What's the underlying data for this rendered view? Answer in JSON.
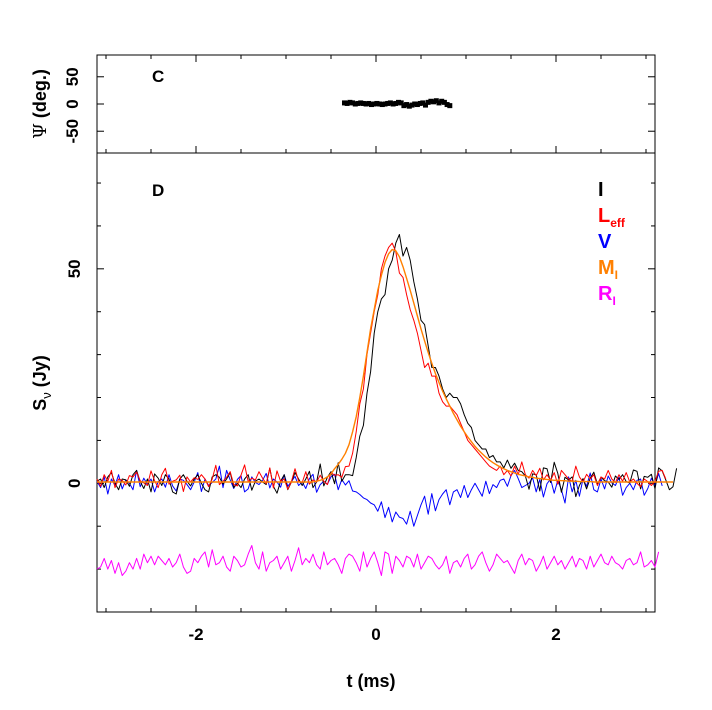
{
  "chart_data": [
    {
      "panel": "C",
      "type": "scatter",
      "title": "",
      "xlabel": "",
      "ylabel_symbol": "Ψ",
      "ylabel_rest": " (deg.)",
      "xlim": [
        -3.1,
        3.1
      ],
      "ylim": [
        -90,
        90
      ],
      "yticks": [
        -50,
        0,
        50
      ],
      "ytick_labels": [
        "-50",
        "0",
        "50"
      ],
      "grid": false,
      "color": "#000000",
      "x": [
        -0.35,
        -0.32,
        -0.29,
        -0.26,
        -0.23,
        -0.2,
        -0.17,
        -0.14,
        -0.11,
        -0.08,
        -0.05,
        -0.02,
        0.01,
        0.04,
        0.07,
        0.1,
        0.13,
        0.16,
        0.19,
        0.22,
        0.25,
        0.28,
        0.31,
        0.34,
        0.37,
        0.4,
        0.43,
        0.46,
        0.49,
        0.52,
        0.55,
        0.58,
        0.61,
        0.64,
        0.67,
        0.7,
        0.73,
        0.76,
        0.79,
        0.82
      ],
      "y": [
        2,
        1,
        3,
        2,
        0,
        1,
        2,
        1,
        0,
        1,
        -1,
        0,
        1,
        0,
        -1,
        0,
        1,
        2,
        0,
        1,
        3,
        2,
        -3,
        -1,
        -4,
        -2,
        0,
        -1,
        1,
        2,
        -2,
        3,
        5,
        4,
        6,
        2,
        5,
        3,
        -1,
        -3
      ]
    },
    {
      "panel": "D",
      "type": "line",
      "title": "",
      "xlabel": "t (ms)",
      "ylabel_main": "S",
      "ylabel_sub": "ν",
      "ylabel_rest": " (Jy)",
      "xlim": [
        -3.1,
        3.1
      ],
      "ylim": [
        -30,
        77
      ],
      "xticks": [
        -2,
        0,
        2
      ],
      "xtick_labels": [
        "-2",
        "0",
        "2"
      ],
      "yticks": [
        0,
        50
      ],
      "ytick_labels": [
        "0",
        "50"
      ],
      "grid": false,
      "legend_position": "top-right",
      "x_start": -3.1,
      "x_step": 0.04,
      "series": [
        {
          "name": "I",
          "subscript": "",
          "color": "#000000",
          "values": [
            0.5,
            1,
            -1,
            1.5,
            2.5,
            0,
            -1.5,
            1,
            0.8,
            -0.7,
            2,
            3,
            0.4,
            -1.2,
            1,
            -2,
            2.2,
            1.2,
            -0.5,
            2,
            1,
            -2,
            -2.5,
            1,
            2,
            0.5,
            -0.6,
            1,
            2,
            0,
            -1.5,
            -2,
            1.5,
            2,
            1.4,
            -0.2,
            1,
            2.5,
            -1,
            0,
            -1,
            1,
            2,
            -1.6,
            0.5,
            1,
            0.3,
            -0.3,
            3.5,
            -0.7,
            -2.3,
            0.5,
            2,
            -1.5,
            0.3,
            2.5,
            1,
            -0.5,
            1,
            2.8,
            -1,
            0.3,
            4.5,
            -0.6,
            1.4,
            2.7,
            -0.1,
            4.8,
            0.5,
            2,
            2,
            1.8,
            6,
            11,
            13.5,
            21,
            26,
            35,
            40,
            43,
            44,
            50,
            52,
            56,
            58,
            53,
            55,
            52,
            47,
            43,
            38,
            37,
            32,
            27,
            27,
            25,
            22,
            20,
            21,
            20,
            20,
            18.5,
            16,
            14,
            13,
            10,
            9,
            8,
            8,
            6,
            6.5,
            5,
            5,
            3.6,
            5.4,
            3.5,
            4.7,
            3,
            2.7,
            1.7,
            -1.4,
            2.2,
            2,
            -1.8,
            3.6,
            3.4,
            0.2,
            4.9,
            2.3,
            -2.1,
            1.4,
            0.8,
            1.5,
            -3.1,
            -0.5,
            1.1,
            -1.3,
            1.2,
            2.6,
            -0.2,
            1.4,
            0.6,
            0.3,
            -0.9,
            1.7,
            0.9,
            2,
            0.4,
            0.1,
            3.1,
            2.8,
            -1.3,
            1.6,
            1.4,
            2.1,
            -1.3,
            3.6,
            2.9,
            0.8,
            -1.5,
            -0.8,
            3.5
          ]
        },
        {
          "name": "L",
          "subscript": "eff",
          "color": "#ff0000",
          "values": [
            1,
            -0.7,
            2,
            0.5,
            3,
            -1,
            1,
            0.7,
            -0.4,
            1.8,
            1.5,
            2.6,
            0.6,
            0.1,
            -0.5,
            2.9,
            0.6,
            -1,
            2,
            3.5,
            -0.2,
            0.5,
            0.8,
            1.9,
            -1.9,
            1.5,
            0.3,
            1.3,
            0.9,
            2,
            1,
            -0.8,
            1,
            4.2,
            -0.3,
            0.5,
            1.4,
            2.7,
            -0.3,
            -0.6,
            1.9,
            4.3,
            0.4,
            1.2,
            0.8,
            2.7,
            1.2,
            -0.1,
            3.6,
            -1.1,
            2.9,
            0.5,
            1,
            -1.4,
            0.4,
            3.4,
            0.5,
            0.2,
            2.7,
            -0.2,
            0.8,
            0.3,
            1.9,
            0.5,
            -0.3,
            2.5,
            1.9,
            2,
            1.4,
            3.9,
            4,
            7,
            12,
            18.5,
            22,
            30,
            35,
            40,
            44,
            50,
            53,
            55,
            56,
            54,
            49,
            48,
            44,
            40.5,
            38,
            35,
            31,
            27,
            28,
            25,
            25,
            21,
            19,
            18,
            18,
            17,
            16,
            14,
            12,
            10,
            9,
            8,
            7,
            6,
            5,
            4,
            3.5,
            3,
            4,
            2,
            3,
            1.7,
            4,
            2,
            5,
            2,
            1.2,
            3,
            1.8,
            3.5,
            0.8,
            2,
            0.7,
            2.5,
            -0.2,
            3,
            2,
            1,
            0.5,
            4,
            1.5,
            0.3,
            2.1,
            1,
            2,
            -0.5,
            1.5,
            1,
            3,
            1,
            0.2,
            2,
            0.5,
            2.5,
            0.3,
            1,
            0,
            -0.8,
            1,
            0.4,
            -0.5,
            0.5,
            2.8,
            3,
            1
          ]
        },
        {
          "name": "V",
          "subscript": "",
          "color": "#0000ff",
          "values": [
            0.5,
            -1,
            1.5,
            -2.5,
            1,
            -0.5,
            2,
            -1.3,
            0.8,
            0,
            -1.5,
            3,
            -0.8,
            1.2,
            -0.2,
            1,
            -2,
            0.4,
            1,
            -0.9,
            2,
            -0.6,
            -1.8,
            1,
            0.7,
            -0.3,
            -1.5,
            0.3,
            2.5,
            -1.9,
            1,
            -0.5,
            0.2,
            1,
            4,
            -1,
            3,
            0.8,
            -1.2,
            0.9,
            1.8,
            -2,
            -1.3,
            1.5,
            0.2,
            -0.3,
            0.7,
            2.3,
            -1.1,
            1,
            0.3,
            -0.9,
            2,
            -0.7,
            0.4,
            1.6,
            -0.5,
            0.3,
            -1.2,
            1.1,
            2.1,
            -2.1,
            -0.3,
            0.5,
            -0.2,
            1.5,
            2.1,
            -1.5,
            0.9,
            -0.4,
            0.6,
            -1.8,
            -2,
            -2.6,
            -3.4,
            -3.8,
            -4.6,
            -5,
            -6.5,
            -4.3,
            -8,
            -5.6,
            -9,
            -6.7,
            -7.9,
            -8.2,
            -9.5,
            -6.5,
            -10,
            -7.5,
            -5,
            -3,
            -7.2,
            -2.4,
            -6.4,
            -3.8,
            -2.5,
            -1.5,
            -5,
            -2,
            -1.5,
            -3.3,
            -0.5,
            -3.3,
            -1.5,
            0,
            -1.5,
            -3,
            0.5,
            -2.4,
            -0.3,
            -1,
            0.7,
            1,
            -0.7,
            1.8,
            3,
            1.1,
            -1,
            -0.5,
            0,
            1.3,
            -2,
            0.9,
            -3.2,
            -0.1,
            1,
            -2.3,
            0.7,
            -1.5,
            -4.6,
            1.5,
            -2,
            0.7,
            -3,
            1,
            -0.7,
            2.4,
            -1.5,
            -2,
            1,
            -1.3,
            1.7,
            0.1,
            -0.5,
            1.4,
            -2.8,
            -1,
            0,
            -1.5,
            0.7,
            1,
            -2.8,
            -1.2,
            1.2,
            -0.5,
            2.3,
            -0.6
          ]
        },
        {
          "name": "M",
          "subscript": "I",
          "color": "#ff8000",
          "values": [
            0.3,
            0.3,
            0.3,
            0.3,
            0.3,
            0.3,
            0.3,
            0.3,
            0.3,
            0.3,
            0.3,
            0.3,
            0.3,
            0.3,
            0.3,
            0.3,
            0.3,
            0.3,
            0.3,
            0.3,
            0.3,
            0.3,
            0.3,
            0.3,
            0.3,
            0.3,
            0.3,
            0.3,
            0.3,
            0.3,
            0.3,
            0.3,
            0.3,
            0.3,
            0.3,
            0.3,
            0.3,
            0.3,
            0.3,
            0.3,
            0.3,
            0.3,
            0.3,
            0.3,
            0.3,
            0.3,
            0.3,
            0.3,
            0.3,
            0.3,
            0.3,
            0.3,
            0.3,
            0.3,
            0.3,
            0.3,
            0.3,
            0.3,
            0.3,
            0.3,
            0.3,
            0.5,
            0.7,
            1,
            1.5,
            2.2,
            3.4,
            4.4,
            5.6,
            7,
            9,
            12,
            15.5,
            20,
            25,
            30.5,
            36,
            40.5,
            45,
            48.5,
            51.5,
            53.5,
            54.5,
            54.2,
            52.8,
            50.5,
            47.8,
            45,
            42,
            39,
            36,
            33.2,
            30.5,
            28,
            25.6,
            23.5,
            21.5,
            19.7,
            18,
            16.3,
            14.8,
            13.3,
            12,
            10.8,
            9.7,
            8.6,
            7.7,
            6.9,
            6.1,
            5.4,
            4.8,
            4.3,
            3.8,
            3.4,
            3,
            2.7,
            2.4,
            2.1,
            1.9,
            1.7,
            1.5,
            1.4,
            1.2,
            1.1,
            1,
            0.9,
            0.8,
            0.7,
            0.7,
            0.6,
            0.6,
            0.5,
            0.5,
            0.5,
            0.4,
            0.4,
            0.4,
            0.4,
            0.3,
            0.3,
            0.3,
            0.3,
            0.3,
            0.3,
            0.3,
            0.3,
            0.3,
            0.3,
            0.3,
            0.3,
            0.3,
            0.3,
            0.3,
            0.3,
            0.3,
            0.3,
            0.3,
            0.3,
            0.3,
            0.3,
            0.3
          ]
        },
        {
          "name": "R",
          "subscript": "I",
          "color": "#ff00ff",
          "values": [
            -20,
            -19.5,
            -17.5,
            -20,
            -18,
            -21,
            -18.5,
            -21.5,
            -20.5,
            -18.5,
            -20,
            -17.5,
            -20,
            -16.5,
            -18.5,
            -17,
            -19,
            -17,
            -18,
            -19,
            -17.5,
            -19.5,
            -18.5,
            -16.5,
            -19.5,
            -21,
            -20.5,
            -17.5,
            -18.5,
            -17,
            -16,
            -19.5,
            -15.5,
            -19,
            -18.5,
            -17,
            -19.5,
            -20.5,
            -17,
            -18,
            -19.5,
            -19,
            -16.5,
            -14.5,
            -18.5,
            -20,
            -16,
            -20.5,
            -18.5,
            -18,
            -17,
            -20,
            -18.5,
            -17,
            -20.5,
            -18,
            -15,
            -19,
            -17.5,
            -18.5,
            -16.5,
            -19,
            -20,
            -16,
            -19,
            -18,
            -17.5,
            -19,
            -21,
            -17.5,
            -16.5,
            -17,
            -18.5,
            -20.5,
            -16,
            -19.5,
            -17.5,
            -16,
            -18.5,
            -21.5,
            -16,
            -16.5,
            -21,
            -17,
            -18,
            -19.5,
            -17,
            -17.5,
            -19.5,
            -16.5,
            -20,
            -18.5,
            -17,
            -17.5,
            -19,
            -20,
            -19,
            -17,
            -21,
            -18.5,
            -18,
            -19.5,
            -17.5,
            -16.5,
            -20,
            -19,
            -17,
            -16,
            -18.5,
            -20.5,
            -19,
            -16.5,
            -17.5,
            -18.5,
            -18,
            -19.5,
            -21,
            -18,
            -16.5,
            -19,
            -17.5,
            -18,
            -20.5,
            -19,
            -17,
            -20,
            -18.5,
            -17,
            -19,
            -18,
            -20,
            -18.5,
            -17,
            -19.5,
            -17.5,
            -18,
            -20,
            -17,
            -19.5,
            -18,
            -16.5,
            -18.5,
            -19,
            -17,
            -18.5,
            -19,
            -20,
            -18,
            -17.5,
            -19,
            -18.5,
            -16,
            -19.5,
            -19,
            -18,
            -19.5,
            -16
          ]
        }
      ]
    }
  ]
}
